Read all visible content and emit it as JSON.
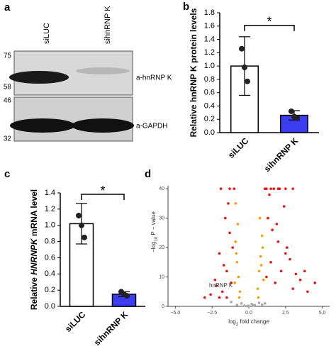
{
  "blot": {
    "panel_label": "a",
    "lanes": [
      "siLUC",
      "sihnRNP K"
    ],
    "markers": [
      "75",
      "58",
      "46",
      "32"
    ],
    "bands": [
      "a-hnRNP K",
      "a-GAPDH"
    ]
  },
  "chart_data": [
    {
      "type": "bar",
      "panel_label": "b",
      "ylabel": [
        "Relative hnRNP K protein levels"
      ],
      "categories": [
        "siLUC",
        "sihnRNP K"
      ],
      "values": [
        1.0,
        0.26
      ],
      "errors": [
        0.44,
        0.07
      ],
      "colors": [
        "#ffffff",
        "#3c3cf0"
      ],
      "points": [
        [
          1.26,
          0.98,
          0.77
        ],
        [
          0.32,
          0.24,
          0.22
        ]
      ],
      "significance": "*",
      "ylim": [
        0,
        1.8
      ],
      "yticks": [
        {
          "value": 0,
          "label": "0.0"
        },
        {
          "value": 0.2,
          "label": "0.2"
        },
        {
          "value": 0.4,
          "label": "0.4"
        },
        {
          "value": 0.6,
          "label": "0.6"
        },
        {
          "value": 0.8,
          "label": "0.8"
        },
        {
          "value": 1,
          "label": "1.0"
        },
        {
          "value": 1.2,
          "label": "1.2"
        },
        {
          "value": 1.4,
          "label": "1.4"
        },
        {
          "value": 1.6,
          "label": "1.6"
        },
        {
          "value": 1.8,
          "label": "1.8"
        }
      ]
    },
    {
      "type": "bar",
      "panel_label": "c",
      "ylabel": [
        "Relative ",
        "HNRNPK",
        " mRNA level"
      ],
      "categories": [
        "siLUC",
        "sihnRNP K"
      ],
      "values": [
        1.02,
        0.15
      ],
      "errors": [
        0.25,
        0.03
      ],
      "colors": [
        "#ffffff",
        "#3c3cf0"
      ],
      "points": [
        [
          1.12,
          1.0,
          0.85
        ],
        [
          0.18,
          0.15,
          0.13
        ]
      ],
      "significance": "*",
      "ylim": [
        0,
        1.4
      ],
      "yticks": [
        {
          "value": 0,
          "label": "0.0"
        },
        {
          "value": 0.2,
          "label": "0.2"
        },
        {
          "value": 0.4,
          "label": "0.4"
        },
        {
          "value": 0.6,
          "label": "0.6"
        },
        {
          "value": 0.8,
          "label": "0.8"
        },
        {
          "value": 1,
          "label": "1.0"
        },
        {
          "value": 1.2,
          "label": "1.2"
        },
        {
          "value": 1.4,
          "label": "1.4"
        }
      ]
    },
    {
      "type": "scatter",
      "panel_label": "d",
      "xlabel": [
        "log",
        "2",
        " fold change"
      ],
      "ylabel": [
        "−log",
        "10",
        " P − value"
      ],
      "annotation": {
        "text": "hnRNP K",
        "x": -1.9,
        "y": 7
      },
      "xlim": [
        -5.5,
        5.5
      ],
      "ylim": [
        0,
        41
      ],
      "xticks": [
        {
          "value": -5,
          "label": "−5.0"
        },
        {
          "value": -2.5,
          "label": "−2.5"
        },
        {
          "value": 0,
          "label": "0.0"
        },
        {
          "value": 2.5,
          "label": "2.5"
        },
        {
          "value": 5,
          "label": "5.0"
        }
      ],
      "yticks": [
        0,
        10,
        20,
        30,
        40
      ],
      "series": [
        {
          "color": "#a9a9a9",
          "x": [
            -0.8,
            -0.5,
            -0.3,
            0.0,
            0.2,
            0.4,
            0.7,
            0.9,
            -1.2,
            1.1,
            -0.1,
            0.3
          ],
          "values": [
            0.5,
            1,
            0.3,
            0.2,
            0.8,
            0.4,
            1.2,
            0.6,
            1.5,
            1.0,
            0.1,
            0.3
          ]
        },
        {
          "color": "#f5a000",
          "x": [
            -0.6,
            -0.7,
            -0.8,
            -0.9,
            -0.75,
            -0.85,
            -0.95,
            0.6,
            0.7,
            0.8,
            0.9,
            0.75,
            0.85,
            1.0,
            -0.65,
            0.65,
            -0.9,
            0.95
          ],
          "values": [
            5,
            10,
            15,
            22,
            28,
            18,
            8,
            6,
            12,
            17,
            24,
            30,
            14,
            9,
            3,
            3,
            35,
            20
          ]
        },
        {
          "color": "#ee1111",
          "x": [
            -1.2,
            -1.5,
            -1.8,
            -2.2,
            -2.6,
            -3.0,
            -1.3,
            -1.6,
            -2.0,
            -1.1,
            -1.4,
            -2.3,
            -1.7,
            -1.0,
            1.2,
            1.5,
            1.8,
            2.2,
            2.6,
            3.0,
            3.5,
            4.0,
            1.3,
            1.6,
            2.0,
            2.4,
            2.8,
            3.2,
            1.1,
            1.4,
            1.9,
            2.5,
            3.8,
            4.5,
            1.7,
            2.1,
            -1.3,
            -1.9,
            1.2,
            1.5,
            2.0,
            2.5,
            3.0,
            -1.5,
            -2.0
          ],
          "values": [
            8,
            12,
            5,
            7,
            4,
            3,
            25,
            30,
            18,
            20,
            35,
            9,
            14,
            40,
            10,
            15,
            8,
            12,
            20,
            6,
            9,
            5,
            30,
            26,
            22,
            34,
            16,
            11,
            40,
            38,
            28,
            18,
            12,
            8,
            40,
            40,
            40,
            40,
            40,
            40,
            40,
            40,
            40,
            3,
            3
          ]
        }
      ]
    }
  ]
}
